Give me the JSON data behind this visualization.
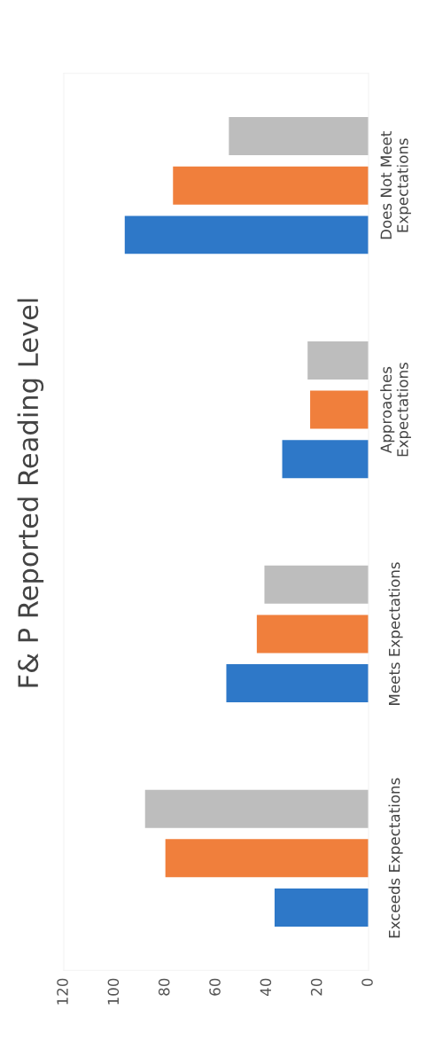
{
  "chart_data": {
    "type": "bar",
    "orientation": "horizontal",
    "title": "F& P Reported Reading Level",
    "categories": [
      "Does Not Meet\nExpectations",
      "Approaches\nExpectations",
      "Meets Expectations",
      "Exceeds Expectations"
    ],
    "series": [
      {
        "color": "#2e78c8",
        "values": [
          96,
          34,
          56,
          37
        ]
      },
      {
        "color": "#f07f3c",
        "values": [
          77,
          23,
          44,
          80
        ]
      },
      {
        "color": "#bdbdbd",
        "values": [
          55,
          24,
          41,
          88
        ]
      }
    ],
    "xlim": [
      120,
      0
    ],
    "xticks": [
      0,
      20,
      40,
      60,
      80,
      100,
      120
    ],
    "grid": false,
    "legend": false
  }
}
